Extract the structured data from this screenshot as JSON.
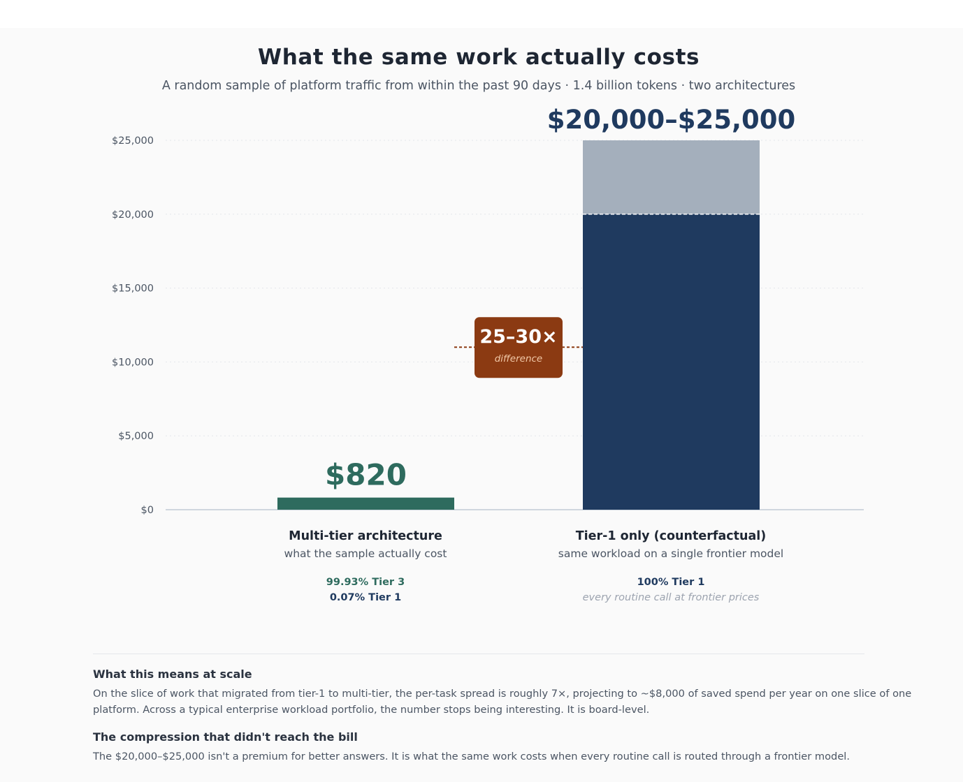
{
  "title": "What the same work actually costs",
  "subtitle": "A random sample of platform traffic from within the past 90 days · 1.4 billion tokens · two architectures",
  "chart_data": {
    "type": "bar",
    "title": "What the same work actually costs",
    "subtitle": "A random sample of platform traffic from within the past 90 days · 1.4 billion tokens · two architectures",
    "ylim": [
      0,
      25000
    ],
    "y_ticks": [
      0,
      5000,
      10000,
      15000,
      20000,
      25000
    ],
    "y_tick_labels": [
      "$0",
      "$5,000",
      "$10,000",
      "$15,000",
      "$20,000",
      "$25,000"
    ],
    "grid": true,
    "bars": [
      {
        "category": "Multi-tier architecture",
        "description": "what the sample actually cost",
        "value": 820,
        "value_label": "$820",
        "color": "#2e6b5e",
        "mix": [
          "99.93% Tier 3",
          "0.07% Tier 1"
        ]
      },
      {
        "category": "Tier-1 only (counterfactual)",
        "description": "same workload on a single frontier model",
        "value_low": 20000,
        "value_high": 25000,
        "value_label": "$20,000–$25,000",
        "color": "#1f3a5f",
        "range_color": "#a4afbc",
        "mix": [
          "100% Tier 1",
          "every routine call at frontier prices"
        ]
      }
    ],
    "annotation": {
      "value": "25–30×",
      "label": "difference",
      "y": 11000,
      "color": "#8b3a12"
    }
  },
  "notes": [
    {
      "heading": "What this means at scale",
      "text": "On the slice of work that migrated from tier-1 to multi-tier, the per-task spread is roughly 7×, projecting to ~$8,000 of saved spend per year on one slice of one platform. Across a typical enterprise workload portfolio, the number stops being interesting. It is board-level."
    },
    {
      "heading": "The compression that didn't reach the bill",
      "text": "The $20,000–$25,000 isn't a premium for better answers. It is what the same work costs when every routine call is routed through a frontier model."
    }
  ]
}
